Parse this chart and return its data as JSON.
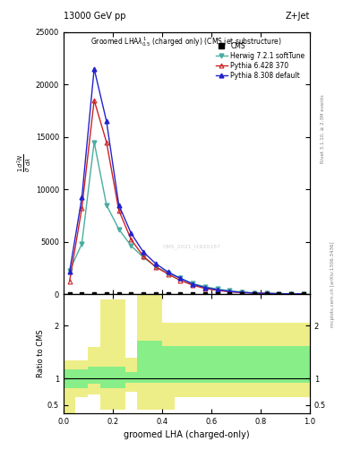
{
  "title_left": "13000 GeV pp",
  "title_right": "Z+Jet",
  "watermark": "CMS_2021_I1920187",
  "herwig_x": [
    0.025,
    0.075,
    0.125,
    0.175,
    0.225,
    0.275,
    0.325,
    0.375,
    0.425,
    0.475,
    0.525,
    0.575,
    0.625,
    0.675,
    0.725,
    0.775,
    0.825,
    0.875,
    0.925,
    0.975
  ],
  "herwig_y": [
    2200,
    4800,
    14500,
    8500,
    6200,
    4600,
    3500,
    2600,
    2000,
    1500,
    1000,
    700,
    480,
    310,
    190,
    110,
    70,
    40,
    25,
    10
  ],
  "pythia6_x": [
    0.025,
    0.075,
    0.125,
    0.175,
    0.225,
    0.275,
    0.325,
    0.375,
    0.425,
    0.475,
    0.525,
    0.575,
    0.625,
    0.675,
    0.725,
    0.775,
    0.825,
    0.875,
    0.925,
    0.975
  ],
  "pythia6_y": [
    1200,
    8200,
    18500,
    14500,
    8000,
    5200,
    3600,
    2600,
    1900,
    1300,
    850,
    530,
    360,
    210,
    140,
    80,
    50,
    30,
    18,
    8
  ],
  "pythia8_x": [
    0.025,
    0.075,
    0.125,
    0.175,
    0.225,
    0.275,
    0.325,
    0.375,
    0.425,
    0.475,
    0.525,
    0.575,
    0.625,
    0.675,
    0.725,
    0.775,
    0.825,
    0.875,
    0.925,
    0.975
  ],
  "pythia8_y": [
    2100,
    9200,
    21500,
    16500,
    8500,
    5800,
    4000,
    2900,
    2100,
    1500,
    950,
    620,
    410,
    260,
    155,
    95,
    58,
    38,
    20,
    9
  ],
  "cms_x": [
    0.025,
    0.075,
    0.125,
    0.175,
    0.225,
    0.275,
    0.325,
    0.375,
    0.425,
    0.475,
    0.525,
    0.575,
    0.625,
    0.675,
    0.725,
    0.775,
    0.825,
    0.875,
    0.925,
    0.975
  ],
  "cms_y": [
    0,
    0,
    0,
    0,
    0,
    0,
    0,
    0,
    0,
    0,
    0,
    0,
    0,
    0,
    0,
    0,
    0,
    0,
    0,
    0
  ],
  "ylim_main": [
    0,
    25000
  ],
  "xlim": [
    0,
    1
  ],
  "ratio_bin_edges": [
    0.0,
    0.05,
    0.1,
    0.15,
    0.2,
    0.25,
    0.3,
    0.35,
    0.4,
    0.45,
    0.5,
    0.55,
    0.6,
    0.65,
    0.7,
    0.75,
    0.8,
    0.85,
    0.9,
    0.95,
    1.0
  ],
  "ratio_yellow_lo": [
    0.0,
    0.65,
    0.7,
    0.42,
    0.42,
    0.75,
    0.42,
    0.42,
    0.42,
    0.65,
    0.65,
    0.65,
    0.65,
    0.65,
    0.65,
    0.65,
    0.65,
    0.65,
    0.65,
    0.65
  ],
  "ratio_yellow_hi": [
    1.35,
    1.35,
    1.6,
    2.5,
    2.5,
    1.4,
    2.6,
    2.6,
    2.05,
    2.05,
    2.05,
    2.05,
    2.05,
    2.05,
    2.05,
    2.05,
    2.05,
    2.05,
    2.05,
    2.05
  ],
  "ratio_green_lo": [
    0.82,
    0.82,
    0.9,
    0.82,
    0.82,
    0.92,
    0.92,
    0.92,
    0.92,
    0.92,
    0.92,
    0.92,
    0.92,
    0.92,
    0.92,
    0.92,
    0.92,
    0.92,
    0.92,
    0.92
  ],
  "ratio_green_hi": [
    1.18,
    1.18,
    1.22,
    1.22,
    1.22,
    1.12,
    1.72,
    1.72,
    1.62,
    1.62,
    1.62,
    1.62,
    1.62,
    1.62,
    1.62,
    1.62,
    1.62,
    1.62,
    1.62,
    1.62
  ],
  "herwig_color": "#4aada0",
  "pythia6_color": "#cc2222",
  "pythia8_color": "#2222cc",
  "cms_color": "#000000",
  "yellow_color": "#eeee88",
  "green_color": "#88ee88"
}
